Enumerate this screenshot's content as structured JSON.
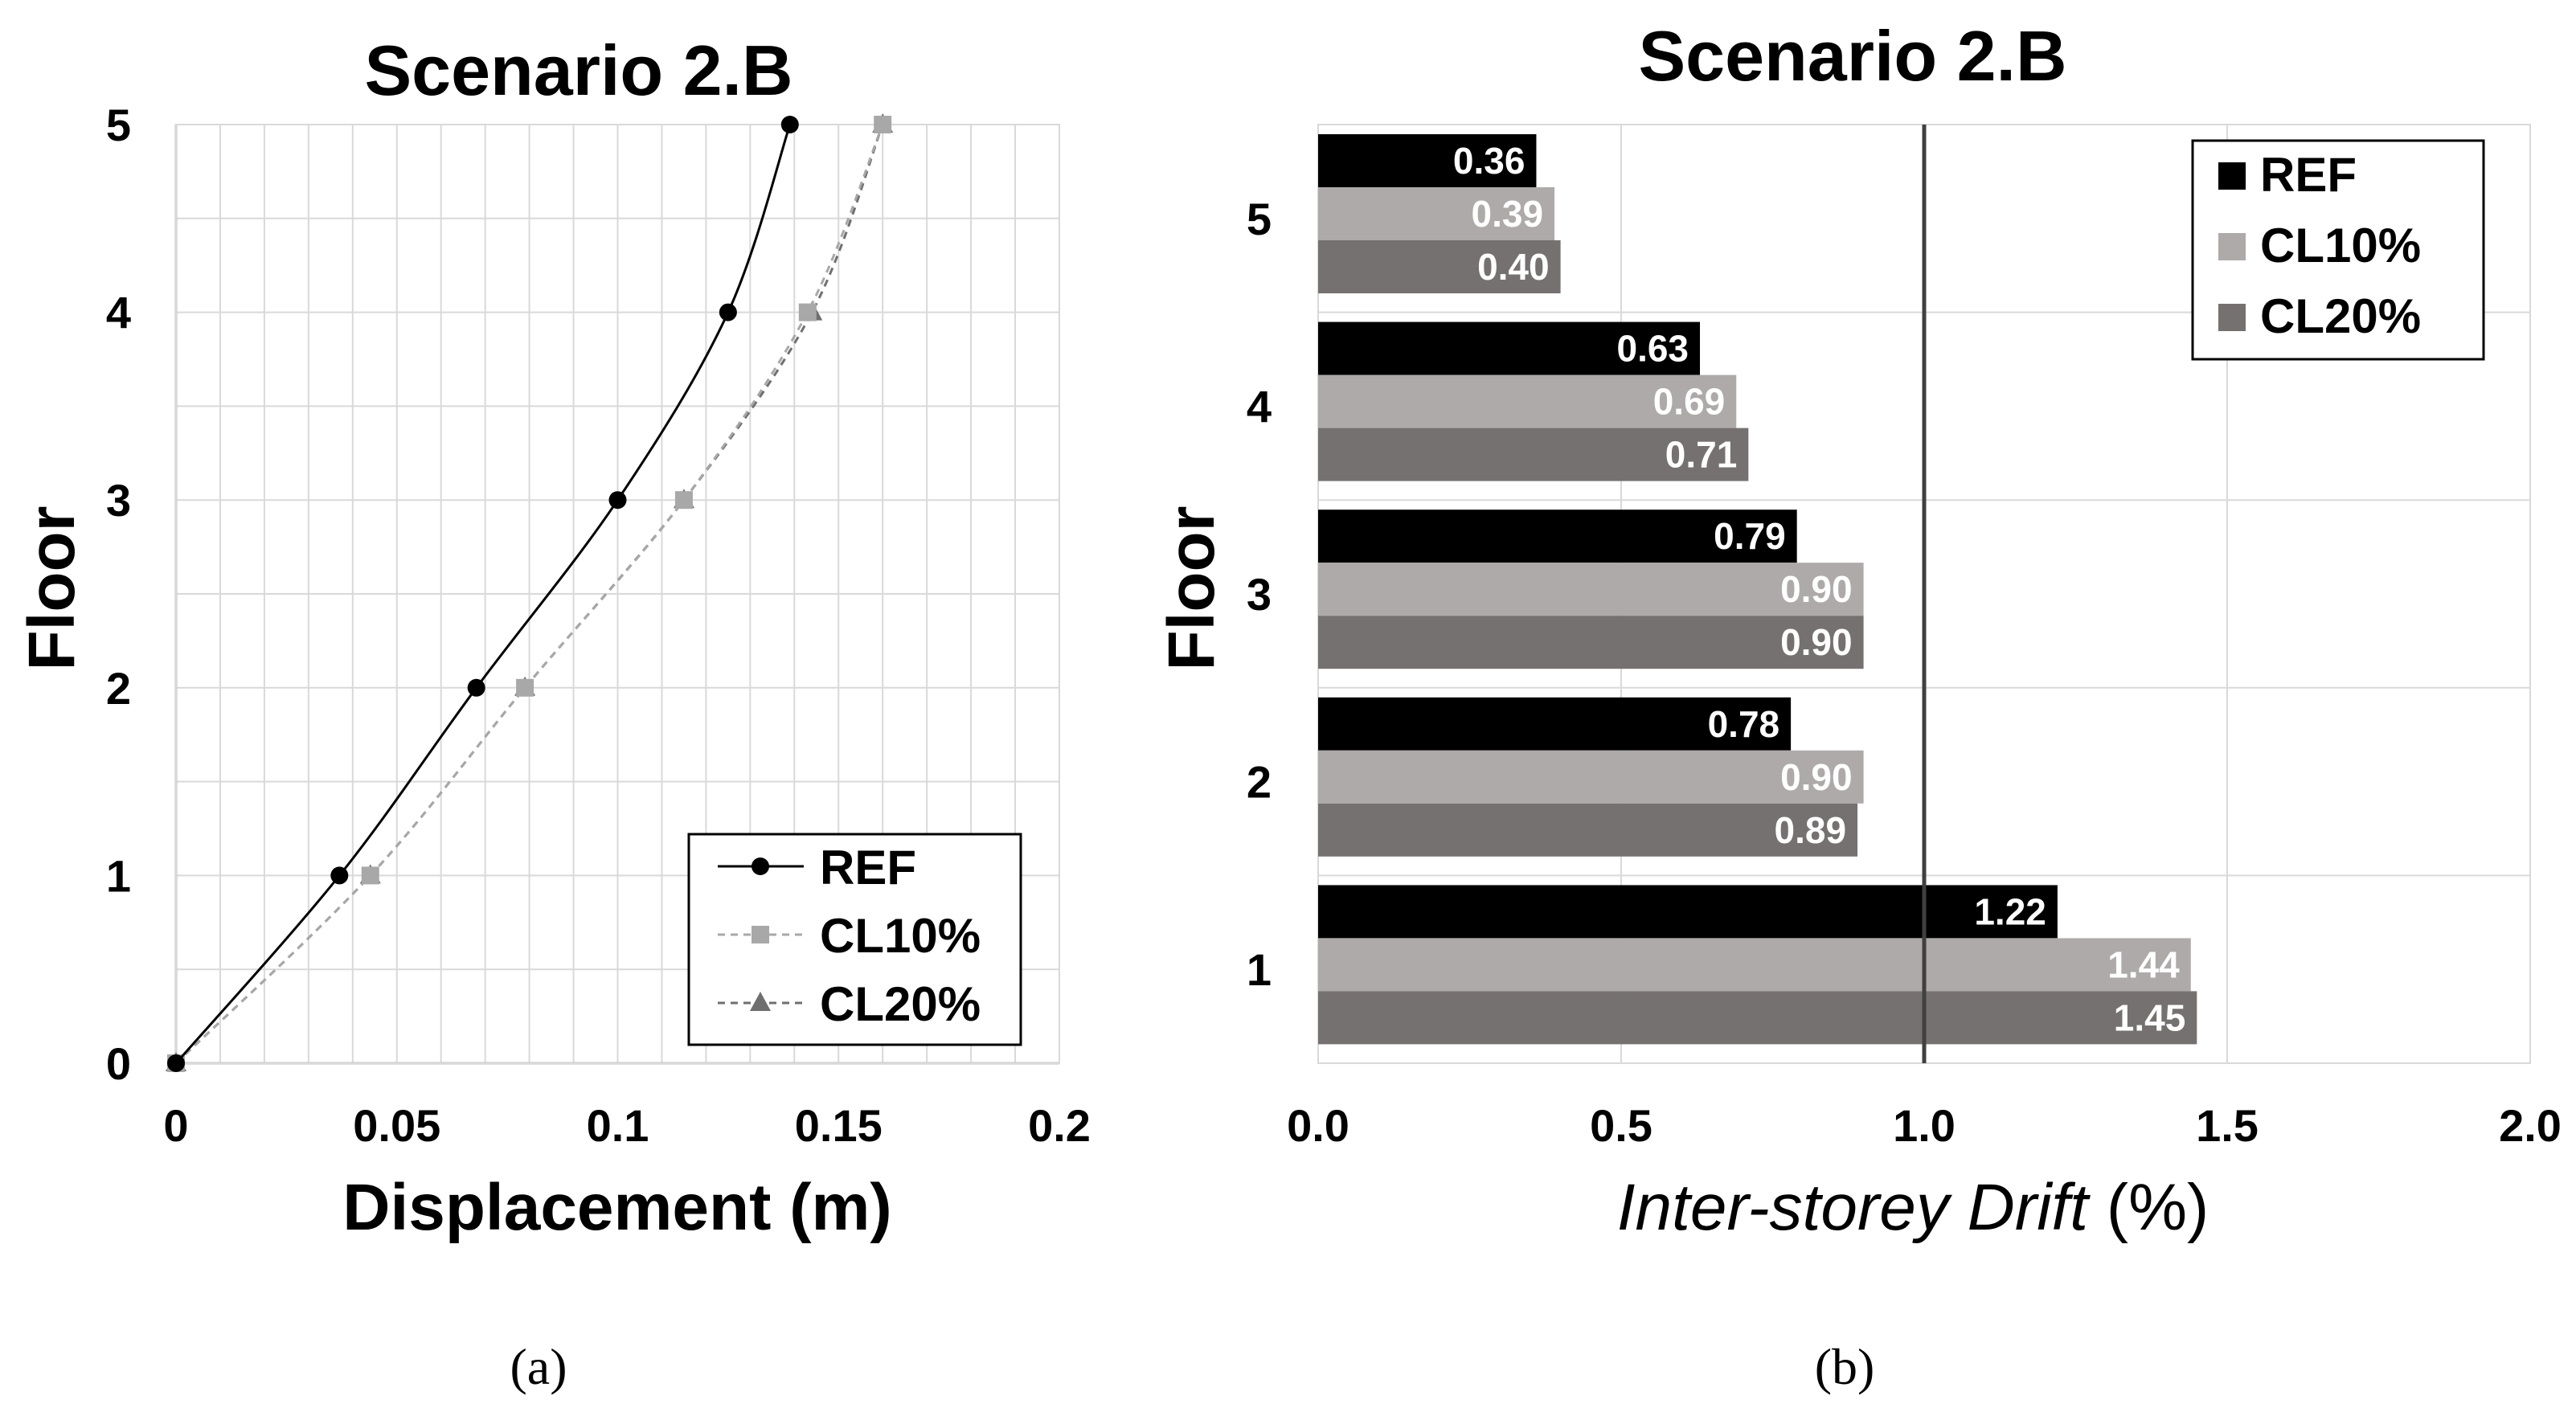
{
  "colors": {
    "ref": "#000000",
    "cl10": "#aeaaaa",
    "cl20": "#767171",
    "cl10_line": "#a8a8a8",
    "cl20_line": "#6f6f6f",
    "grid": "#d9d9d9",
    "limit_line": "#404040"
  },
  "captions": {
    "a": "(a)",
    "b": "(b)"
  },
  "chart_data": [
    {
      "id": "a",
      "type": "line",
      "title": "Scenario 2.B",
      "xlabel": "Displacement (m)",
      "ylabel": "Floor",
      "xlim": [
        0,
        0.2
      ],
      "ylim": [
        0,
        5
      ],
      "xticks": [
        0,
        0.05,
        0.1,
        0.15,
        0.2
      ],
      "xtick_labels": [
        "0",
        "0.05",
        "0.1",
        "0.15",
        "0.2"
      ],
      "yticks": [
        0,
        1,
        2,
        3,
        4,
        5
      ],
      "ytick_labels": [
        "0",
        "1",
        "2",
        "3",
        "4",
        "5"
      ],
      "grid": true,
      "legend_position": "bottom-right",
      "series": [
        {
          "name": "REF",
          "marker": "circle",
          "line": "solid",
          "x": [
            0,
            0.037,
            0.068,
            0.1,
            0.125,
            0.139
          ],
          "y": [
            0,
            1,
            2,
            3,
            4,
            5
          ]
        },
        {
          "name": "CL10%",
          "marker": "square",
          "line": "dashed",
          "x": [
            0,
            0.044,
            0.079,
            0.115,
            0.143,
            0.16
          ],
          "y": [
            0,
            1,
            2,
            3,
            4,
            5
          ]
        },
        {
          "name": "CL20%",
          "marker": "triangle",
          "line": "dashed",
          "x": [
            0,
            0.044,
            0.079,
            0.115,
            0.144,
            0.16
          ],
          "y": [
            0,
            1,
            2,
            3,
            4,
            5
          ]
        }
      ]
    },
    {
      "id": "b",
      "type": "bar",
      "orientation": "horizontal",
      "title": "Scenario 2.B",
      "xlabel_italic": "Inter-storey Drift",
      "xlabel_rest": " (%)",
      "ylabel": "Floor",
      "xlim": [
        0,
        2.0
      ],
      "xticks": [
        0,
        0.5,
        1.0,
        1.5,
        2.0
      ],
      "xtick_labels": [
        "0.0",
        "0.5",
        "1.0",
        "1.5",
        "2.0"
      ],
      "categories": [
        "5",
        "4",
        "3",
        "2",
        "1"
      ],
      "limit_line": 1.0,
      "grid": true,
      "legend_position": "top-right",
      "series": [
        {
          "name": "REF",
          "values": [
            0.36,
            0.63,
            0.79,
            0.78,
            1.22
          ],
          "labels": [
            "0.36",
            "0.63",
            "0.79",
            "0.78",
            "1.22"
          ]
        },
        {
          "name": "CL10%",
          "values": [
            0.39,
            0.69,
            0.9,
            0.9,
            1.44
          ],
          "labels": [
            "0.39",
            "0.69",
            "0.90",
            "0.90",
            "1.44"
          ]
        },
        {
          "name": "CL20%",
          "values": [
            0.4,
            0.71,
            0.9,
            0.89,
            1.45
          ],
          "labels": [
            "0.40",
            "0.71",
            "0.90",
            "0.89",
            "1.45"
          ]
        }
      ]
    }
  ]
}
